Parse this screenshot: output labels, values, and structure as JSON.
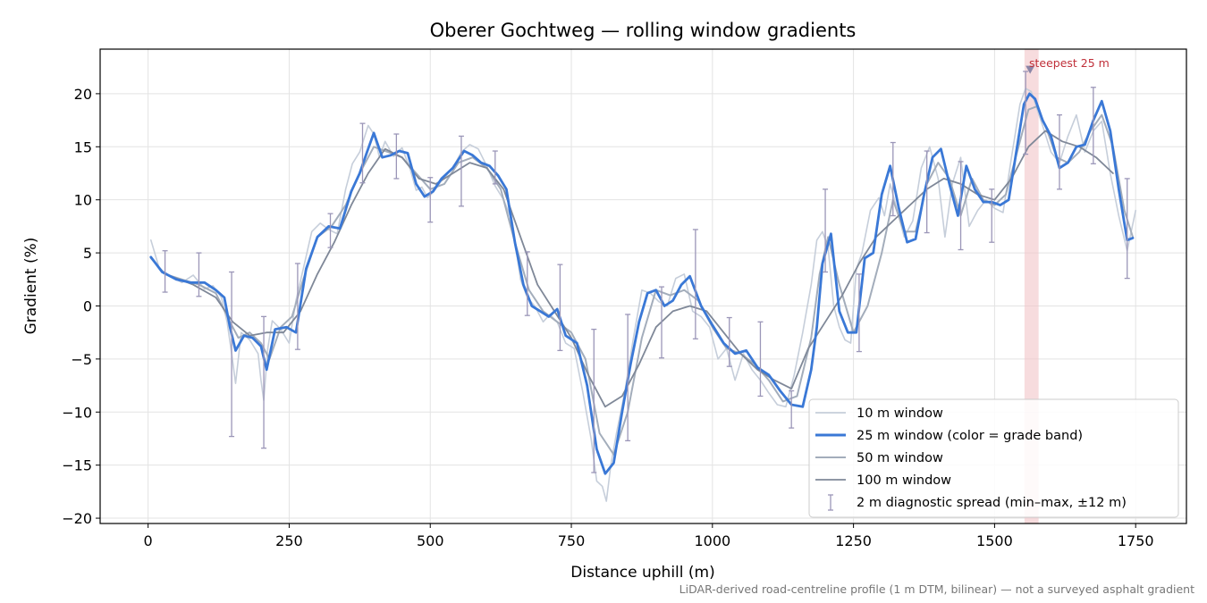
{
  "chart_data": {
    "type": "line",
    "title": "Oberer Gochtweg — rolling window gradients",
    "xlabel": "Distance uphill (m)",
    "ylabel": "Gradient (%)",
    "xlim": [
      -85,
      1840
    ],
    "ylim": [
      -20.5,
      24.2
    ],
    "x_ticks": [
      0,
      250,
      500,
      750,
      1000,
      1250,
      1500,
      1750
    ],
    "y_ticks": [
      -20,
      -15,
      -10,
      -5,
      0,
      5,
      10,
      15,
      20
    ],
    "x_tick_labels": [
      "0",
      "250",
      "500",
      "750",
      "1000",
      "1250",
      "1500",
      "1750"
    ],
    "y_tick_labels": [
      "−20",
      "−15",
      "−10",
      "−5",
      "0",
      "5",
      "10",
      "15",
      "20"
    ],
    "grid": true,
    "legend_position": "lower-right",
    "footnote": "LiDAR-derived road-centreline profile (1 m DTM, bilinear) — not a surveyed asphalt gradient",
    "highlight": {
      "x_start": 1553,
      "x_end": 1578,
      "peak_x": 1563,
      "peak_y": 22.3,
      "label": "steepest 25 m",
      "color": "#f2c4c8",
      "marker_color": "#8a86a8"
    },
    "series": [
      {
        "name": "10 m window",
        "color": "#c6ceda",
        "width": 1.6,
        "x": [
          5,
          20,
          40,
          60,
          80,
          100,
          115,
          130,
          140,
          148,
          155,
          165,
          180,
          195,
          200,
          205,
          212,
          220,
          235,
          250,
          262,
          275,
          290,
          305,
          320,
          335,
          350,
          362,
          375,
          390,
          400,
          410,
          420,
          435,
          450,
          465,
          475,
          485,
          495,
          505,
          520,
          540,
          555,
          570,
          585,
          600,
          615,
          630,
          645,
          660,
          672,
          685,
          700,
          712,
          725,
          740,
          755,
          770,
          785,
          795,
          805,
          812,
          820,
          830,
          845,
          860,
          875,
          890,
          905,
          920,
          935,
          950,
          965,
          980,
          995,
          1010,
          1025,
          1040,
          1055,
          1070,
          1085,
          1100,
          1115,
          1130,
          1145,
          1160,
          1175,
          1185,
          1195,
          1205,
          1215,
          1225,
          1235,
          1245,
          1255,
          1265,
          1280,
          1295,
          1305,
          1315,
          1325,
          1340,
          1355,
          1370,
          1385,
          1400,
          1412,
          1425,
          1440,
          1455,
          1470,
          1485,
          1500,
          1515,
          1530,
          1545,
          1555,
          1565,
          1575,
          1585,
          1600,
          1615,
          1630,
          1645,
          1660,
          1675,
          1690,
          1705,
          1720,
          1735,
          1750
        ],
        "y": [
          6.2,
          3.5,
          2.8,
          2.2,
          2.9,
          1.6,
          1.9,
          0.8,
          -1.5,
          -4.5,
          -7.3,
          -2.5,
          -3.2,
          -4.5,
          -7.0,
          -8.9,
          -4.0,
          -1.4,
          -2.2,
          -3.5,
          0.5,
          3.5,
          7.0,
          7.8,
          7.2,
          6.8,
          11.0,
          13.4,
          14.5,
          17.0,
          16.2,
          14.0,
          15.5,
          14.1,
          14.9,
          12.8,
          10.9,
          11.2,
          10.2,
          10.7,
          11.8,
          13.0,
          14.5,
          15.2,
          14.8,
          13.2,
          11.3,
          10.0,
          8.0,
          2.5,
          0.8,
          0.0,
          -1.5,
          -0.8,
          -1.5,
          -3.5,
          -4.0,
          -8.0,
          -12.5,
          -16.5,
          -17.0,
          -18.4,
          -15.0,
          -12.0,
          -8.0,
          -3.0,
          1.5,
          1.2,
          0.4,
          0.0,
          2.6,
          3.0,
          -0.5,
          -1.0,
          -2.0,
          -5.0,
          -4.0,
          -7.0,
          -4.5,
          -6.0,
          -7.0,
          -8.2,
          -9.3,
          -9.5,
          -6.5,
          -2.5,
          2.0,
          6.2,
          7.0,
          5.5,
          0.0,
          -2.0,
          -3.2,
          -3.5,
          3.5,
          5.0,
          9.0,
          10.2,
          8.5,
          11.5,
          9.5,
          6.5,
          8.0,
          13.0,
          15.0,
          12.0,
          6.5,
          11.5,
          14.0,
          7.5,
          9.0,
          10.0,
          9.2,
          8.8,
          14.0,
          19.0,
          20.5,
          20.2,
          18.6,
          17.0,
          14.5,
          13.5,
          16.0,
          18.0,
          14.5,
          16.5,
          17.4,
          12.5,
          8.5,
          5.2,
          9.0
        ]
      },
      {
        "name": "25 m window (color = grade band)",
        "color": "#3a78d6",
        "width": 2.8,
        "x": [
          5,
          25,
          50,
          75,
          100,
          120,
          135,
          145,
          155,
          170,
          185,
          200,
          210,
          225,
          245,
          262,
          280,
          300,
          320,
          340,
          360,
          375,
          388,
          400,
          415,
          430,
          445,
          460,
          475,
          490,
          505,
          520,
          540,
          560,
          575,
          590,
          605,
          620,
          635,
          650,
          665,
          680,
          695,
          710,
          725,
          740,
          760,
          778,
          795,
          810,
          825,
          840,
          855,
          870,
          885,
          900,
          915,
          930,
          945,
          960,
          980,
          1000,
          1020,
          1040,
          1060,
          1080,
          1100,
          1120,
          1140,
          1160,
          1175,
          1185,
          1195,
          1210,
          1225,
          1240,
          1255,
          1270,
          1285,
          1300,
          1315,
          1330,
          1345,
          1360,
          1375,
          1390,
          1405,
          1420,
          1435,
          1450,
          1465,
          1480,
          1495,
          1510,
          1525,
          1540,
          1552,
          1562,
          1572,
          1585,
          1600,
          1615,
          1630,
          1645,
          1660,
          1675,
          1690,
          1705,
          1720,
          1735,
          1745
        ],
        "y": [
          4.6,
          3.2,
          2.5,
          2.2,
          2.2,
          1.5,
          0.8,
          -2.0,
          -4.2,
          -2.8,
          -3.0,
          -3.8,
          -6.0,
          -2.2,
          -2.0,
          -2.5,
          3.5,
          6.5,
          7.5,
          7.3,
          10.8,
          12.5,
          14.5,
          16.3,
          14.0,
          14.2,
          14.6,
          14.4,
          11.5,
          10.3,
          10.8,
          12.0,
          13.0,
          14.6,
          14.2,
          13.5,
          13.2,
          12.3,
          11.0,
          6.0,
          2.0,
          0.0,
          -0.5,
          -1.0,
          -0.3,
          -2.8,
          -3.5,
          -7.5,
          -13.5,
          -15.8,
          -14.8,
          -10.0,
          -5.5,
          -1.5,
          1.2,
          1.5,
          0.0,
          0.5,
          2.0,
          2.8,
          0.0,
          -1.8,
          -3.5,
          -4.5,
          -4.2,
          -5.8,
          -6.5,
          -8.0,
          -9.3,
          -9.5,
          -6.0,
          -2.0,
          4.0,
          6.8,
          -0.5,
          -2.5,
          -2.5,
          4.5,
          5.0,
          10.5,
          13.2,
          9.3,
          6.0,
          6.3,
          10.5,
          14.0,
          14.8,
          11.5,
          8.5,
          13.2,
          11.0,
          9.8,
          9.8,
          9.5,
          10.0,
          15.0,
          19.0,
          20.0,
          19.5,
          17.5,
          16.0,
          13.0,
          13.5,
          15.0,
          15.2,
          17.5,
          19.3,
          16.5,
          11.0,
          6.2,
          6.4
        ]
      },
      {
        "name": "50 m window",
        "color": "#a3adbb",
        "width": 2.0,
        "x": [
          5,
          30,
          60,
          90,
          120,
          145,
          160,
          180,
          200,
          215,
          235,
          255,
          275,
          300,
          325,
          350,
          375,
          400,
          425,
          450,
          475,
          500,
          525,
          550,
          575,
          600,
          625,
          650,
          675,
          700,
          725,
          750,
          775,
          800,
          825,
          850,
          875,
          900,
          925,
          950,
          975,
          1000,
          1025,
          1050,
          1075,
          1100,
          1125,
          1150,
          1175,
          1190,
          1205,
          1225,
          1250,
          1275,
          1300,
          1320,
          1340,
          1360,
          1380,
          1400,
          1420,
          1440,
          1460,
          1480,
          1500,
          1520,
          1540,
          1560,
          1575,
          1590,
          1610,
          1630,
          1650,
          1670,
          1690,
          1710,
          1730,
          1745
        ],
        "y": [
          4.5,
          3.0,
          2.5,
          2.0,
          1.2,
          -1.5,
          -3.0,
          -2.5,
          -3.5,
          -5.0,
          -2.0,
          -1.0,
          2.5,
          6.5,
          7.5,
          9.5,
          12.5,
          15.0,
          14.5,
          14.0,
          12.5,
          11.0,
          11.5,
          13.5,
          14.0,
          13.0,
          11.0,
          6.0,
          1.5,
          -0.5,
          -1.5,
          -2.5,
          -5.0,
          -12.0,
          -14.0,
          -10.0,
          -3.0,
          1.5,
          1.0,
          1.5,
          0.5,
          -2.0,
          -4.0,
          -4.5,
          -5.5,
          -7.0,
          -9.0,
          -8.5,
          -3.0,
          3.0,
          6.5,
          2.0,
          -2.5,
          0.0,
          5.0,
          10.0,
          7.0,
          7.0,
          11.5,
          13.5,
          12.0,
          8.5,
          12.0,
          10.0,
          9.5,
          10.5,
          14.5,
          18.5,
          18.8,
          17.0,
          14.0,
          13.5,
          14.5,
          16.5,
          18.0,
          15.0,
          9.0,
          6.5
        ]
      },
      {
        "name": "100 m window",
        "color": "#7f8898",
        "width": 1.8,
        "x": [
          40,
          80,
          120,
          150,
          180,
          210,
          240,
          270,
          300,
          330,
          360,
          390,
          420,
          450,
          480,
          510,
          540,
          570,
          600,
          630,
          660,
          690,
          720,
          750,
          780,
          810,
          840,
          870,
          900,
          930,
          960,
          990,
          1020,
          1050,
          1080,
          1110,
          1140,
          1170,
          1200,
          1230,
          1260,
          1290,
          1320,
          1350,
          1380,
          1410,
          1440,
          1470,
          1500,
          1530,
          1560,
          1590,
          1620,
          1650,
          1680,
          1710
        ],
        "y": [
          2.8,
          2.0,
          0.8,
          -1.5,
          -2.8,
          -2.5,
          -2.5,
          -0.5,
          3.0,
          6.0,
          9.5,
          12.5,
          14.8,
          14.0,
          12.0,
          11.5,
          12.5,
          13.5,
          13.0,
          11.0,
          6.5,
          2.0,
          -0.5,
          -3.0,
          -6.5,
          -9.5,
          -8.5,
          -5.5,
          -2.0,
          -0.5,
          0.0,
          -0.5,
          -2.5,
          -4.5,
          -6.0,
          -7.0,
          -7.8,
          -4.0,
          -1.5,
          1.0,
          4.0,
          6.5,
          8.0,
          9.5,
          11.0,
          12.0,
          11.5,
          10.5,
          10.0,
          12.0,
          15.0,
          16.5,
          15.5,
          15.0,
          14.0,
          12.5
        ]
      }
    ],
    "diagnostic_spread": {
      "name": "2 m diagnostic spread (min–max, ±12 m)",
      "color": "#9b96b8",
      "points": [
        {
          "x": 30,
          "low": 1.3,
          "high": 5.2
        },
        {
          "x": 90,
          "low": 0.9,
          "high": 5.0
        },
        {
          "x": 148,
          "low": -12.3,
          "high": 3.2
        },
        {
          "x": 205,
          "low": -13.4,
          "high": -1.0
        },
        {
          "x": 265,
          "low": -4.1,
          "high": 4.0
        },
        {
          "x": 323,
          "low": 5.5,
          "high": 8.7
        },
        {
          "x": 380,
          "low": 11.6,
          "high": 17.2
        },
        {
          "x": 440,
          "low": 12.0,
          "high": 16.2
        },
        {
          "x": 500,
          "low": 7.9,
          "high": 12.1
        },
        {
          "x": 555,
          "low": 9.4,
          "high": 16.0
        },
        {
          "x": 615,
          "low": 11.5,
          "high": 14.6
        },
        {
          "x": 672,
          "low": -0.9,
          "high": 5.1
        },
        {
          "x": 730,
          "low": -4.2,
          "high": 3.9
        },
        {
          "x": 790,
          "low": -15.7,
          "high": -2.2
        },
        {
          "x": 850,
          "low": -12.7,
          "high": -0.8
        },
        {
          "x": 910,
          "low": -4.9,
          "high": 1.8
        },
        {
          "x": 970,
          "low": -3.1,
          "high": 7.2
        },
        {
          "x": 1030,
          "low": -5.7,
          "high": -1.1
        },
        {
          "x": 1085,
          "low": -8.5,
          "high": -1.5
        },
        {
          "x": 1140,
          "low": -11.5,
          "high": -8.0
        },
        {
          "x": 1200,
          "low": 3.2,
          "high": 11.0
        },
        {
          "x": 1260,
          "low": -4.3,
          "high": 3.0
        },
        {
          "x": 1320,
          "low": 8.5,
          "high": 15.4
        },
        {
          "x": 1380,
          "low": 6.9,
          "high": 14.6
        },
        {
          "x": 1440,
          "low": 5.3,
          "high": 13.6
        },
        {
          "x": 1495,
          "low": 6.0,
          "high": 11.0
        },
        {
          "x": 1555,
          "low": 14.3,
          "high": 22.1
        },
        {
          "x": 1615,
          "low": 11.0,
          "high": 18.0
        },
        {
          "x": 1675,
          "low": 13.4,
          "high": 20.6
        },
        {
          "x": 1735,
          "low": 2.6,
          "high": 12.0
        }
      ]
    }
  }
}
